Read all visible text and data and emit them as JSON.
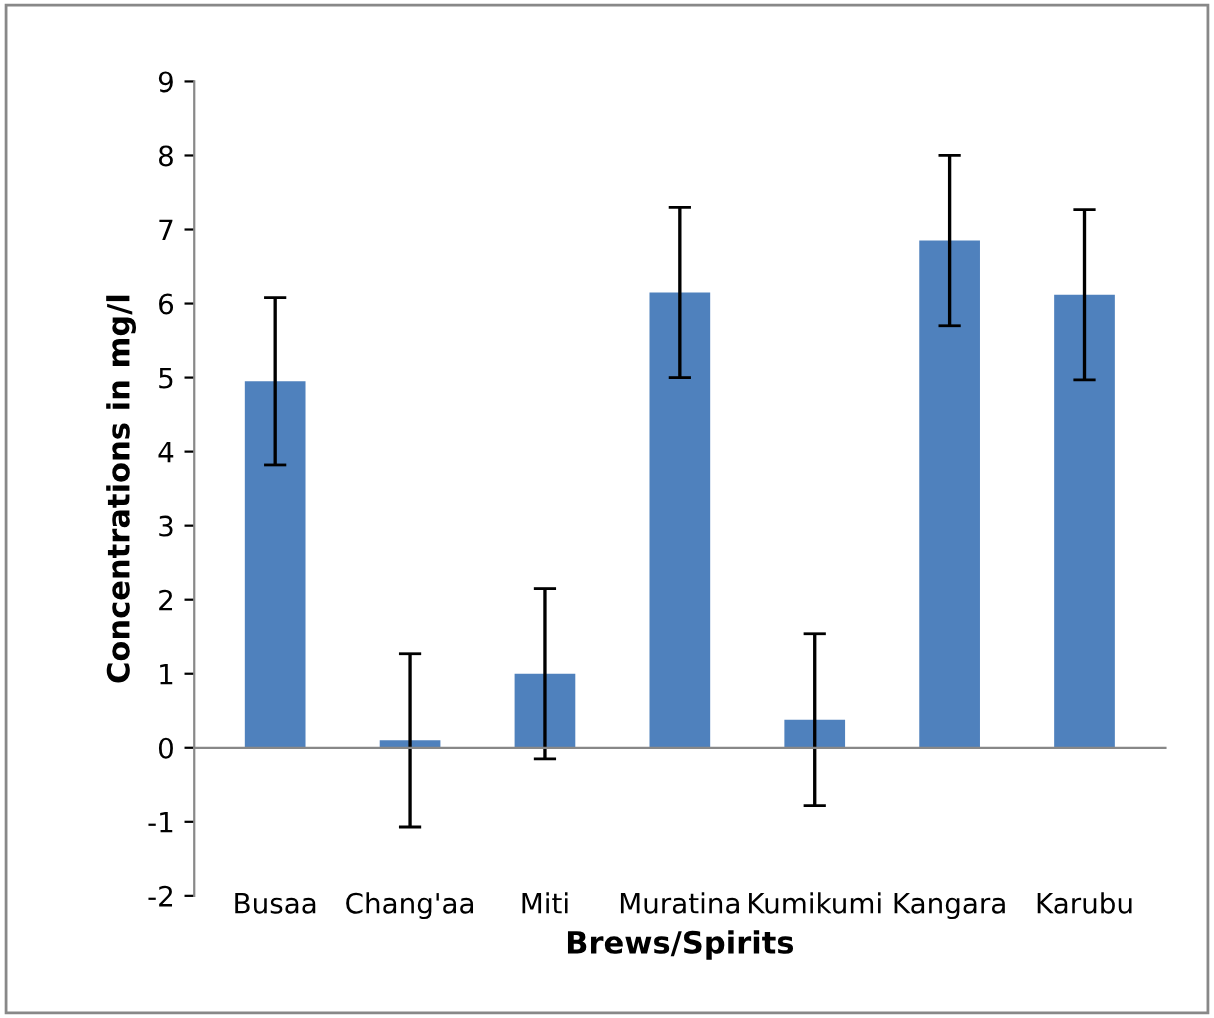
{
  "chart_data": {
    "type": "bar",
    "xlabel": "Brews/Spirits",
    "ylabel": "Concentrations in mg/l",
    "categories": [
      "Busaa",
      "Chang'aa",
      "Miti",
      "Muratina",
      "Kumikumi",
      "Kangara",
      "Karubu"
    ],
    "values": [
      4.95,
      0.1,
      1.0,
      6.15,
      0.38,
      6.85,
      6.12
    ],
    "errors": [
      1.13,
      1.17,
      1.15,
      1.15,
      1.16,
      1.15,
      1.15
    ],
    "color": "#4f81bd",
    "ylim": [
      -2,
      9
    ],
    "yticks": [
      -2,
      -1,
      0,
      1,
      2,
      3,
      4,
      5,
      6,
      7,
      8,
      9
    ]
  }
}
